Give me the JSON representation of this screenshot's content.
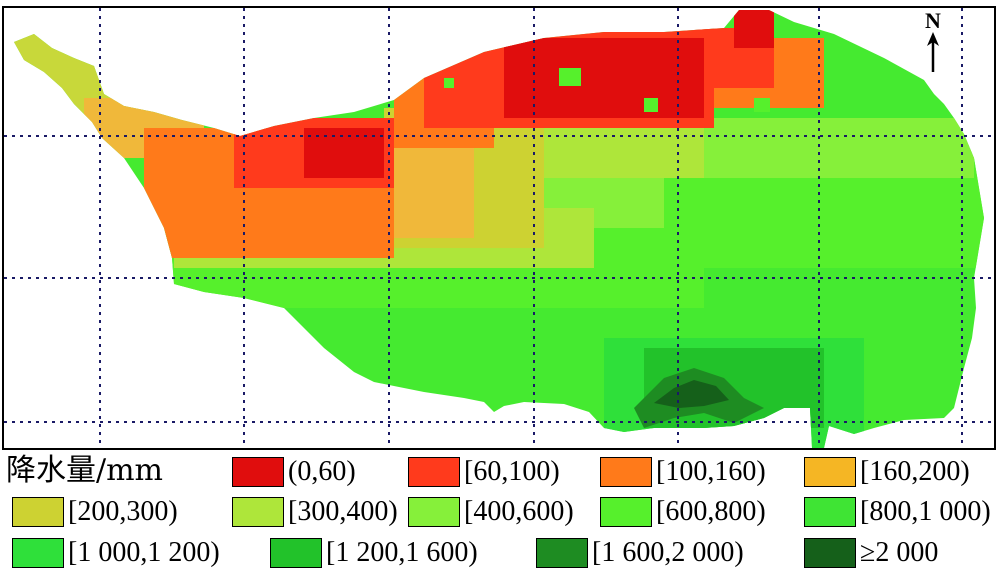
{
  "north_label": "N",
  "legend": {
    "title": "降水量/mm",
    "items": [
      {
        "label": "(0,60)",
        "color": "#e00d0d"
      },
      {
        "label": "[60,100)",
        "color": "#ff3a1c"
      },
      {
        "label": "[100,160)",
        "color": "#ff7a1a"
      },
      {
        "label": "[160,200)",
        "color": "#f5b624"
      },
      {
        "label": "[200,300)",
        "color": "#cdd232"
      },
      {
        "label": "[300,400)",
        "color": "#aee63a"
      },
      {
        "label": "[400,600)",
        "color": "#86f03a"
      },
      {
        "label": "[600,800)",
        "color": "#56f02c"
      },
      {
        "label": "[800,1 000)",
        "color": "#3fe434"
      },
      {
        "label": "[1 000,1 200)",
        "color": "#2fe03a"
      },
      {
        "label": "[1 200,1 600)",
        "color": "#22c22a"
      },
      {
        "label": "[1 600,2 000)",
        "color": "#1e8c22"
      },
      {
        "label": "≥2 000",
        "color": "#15601a"
      }
    ]
  }
}
